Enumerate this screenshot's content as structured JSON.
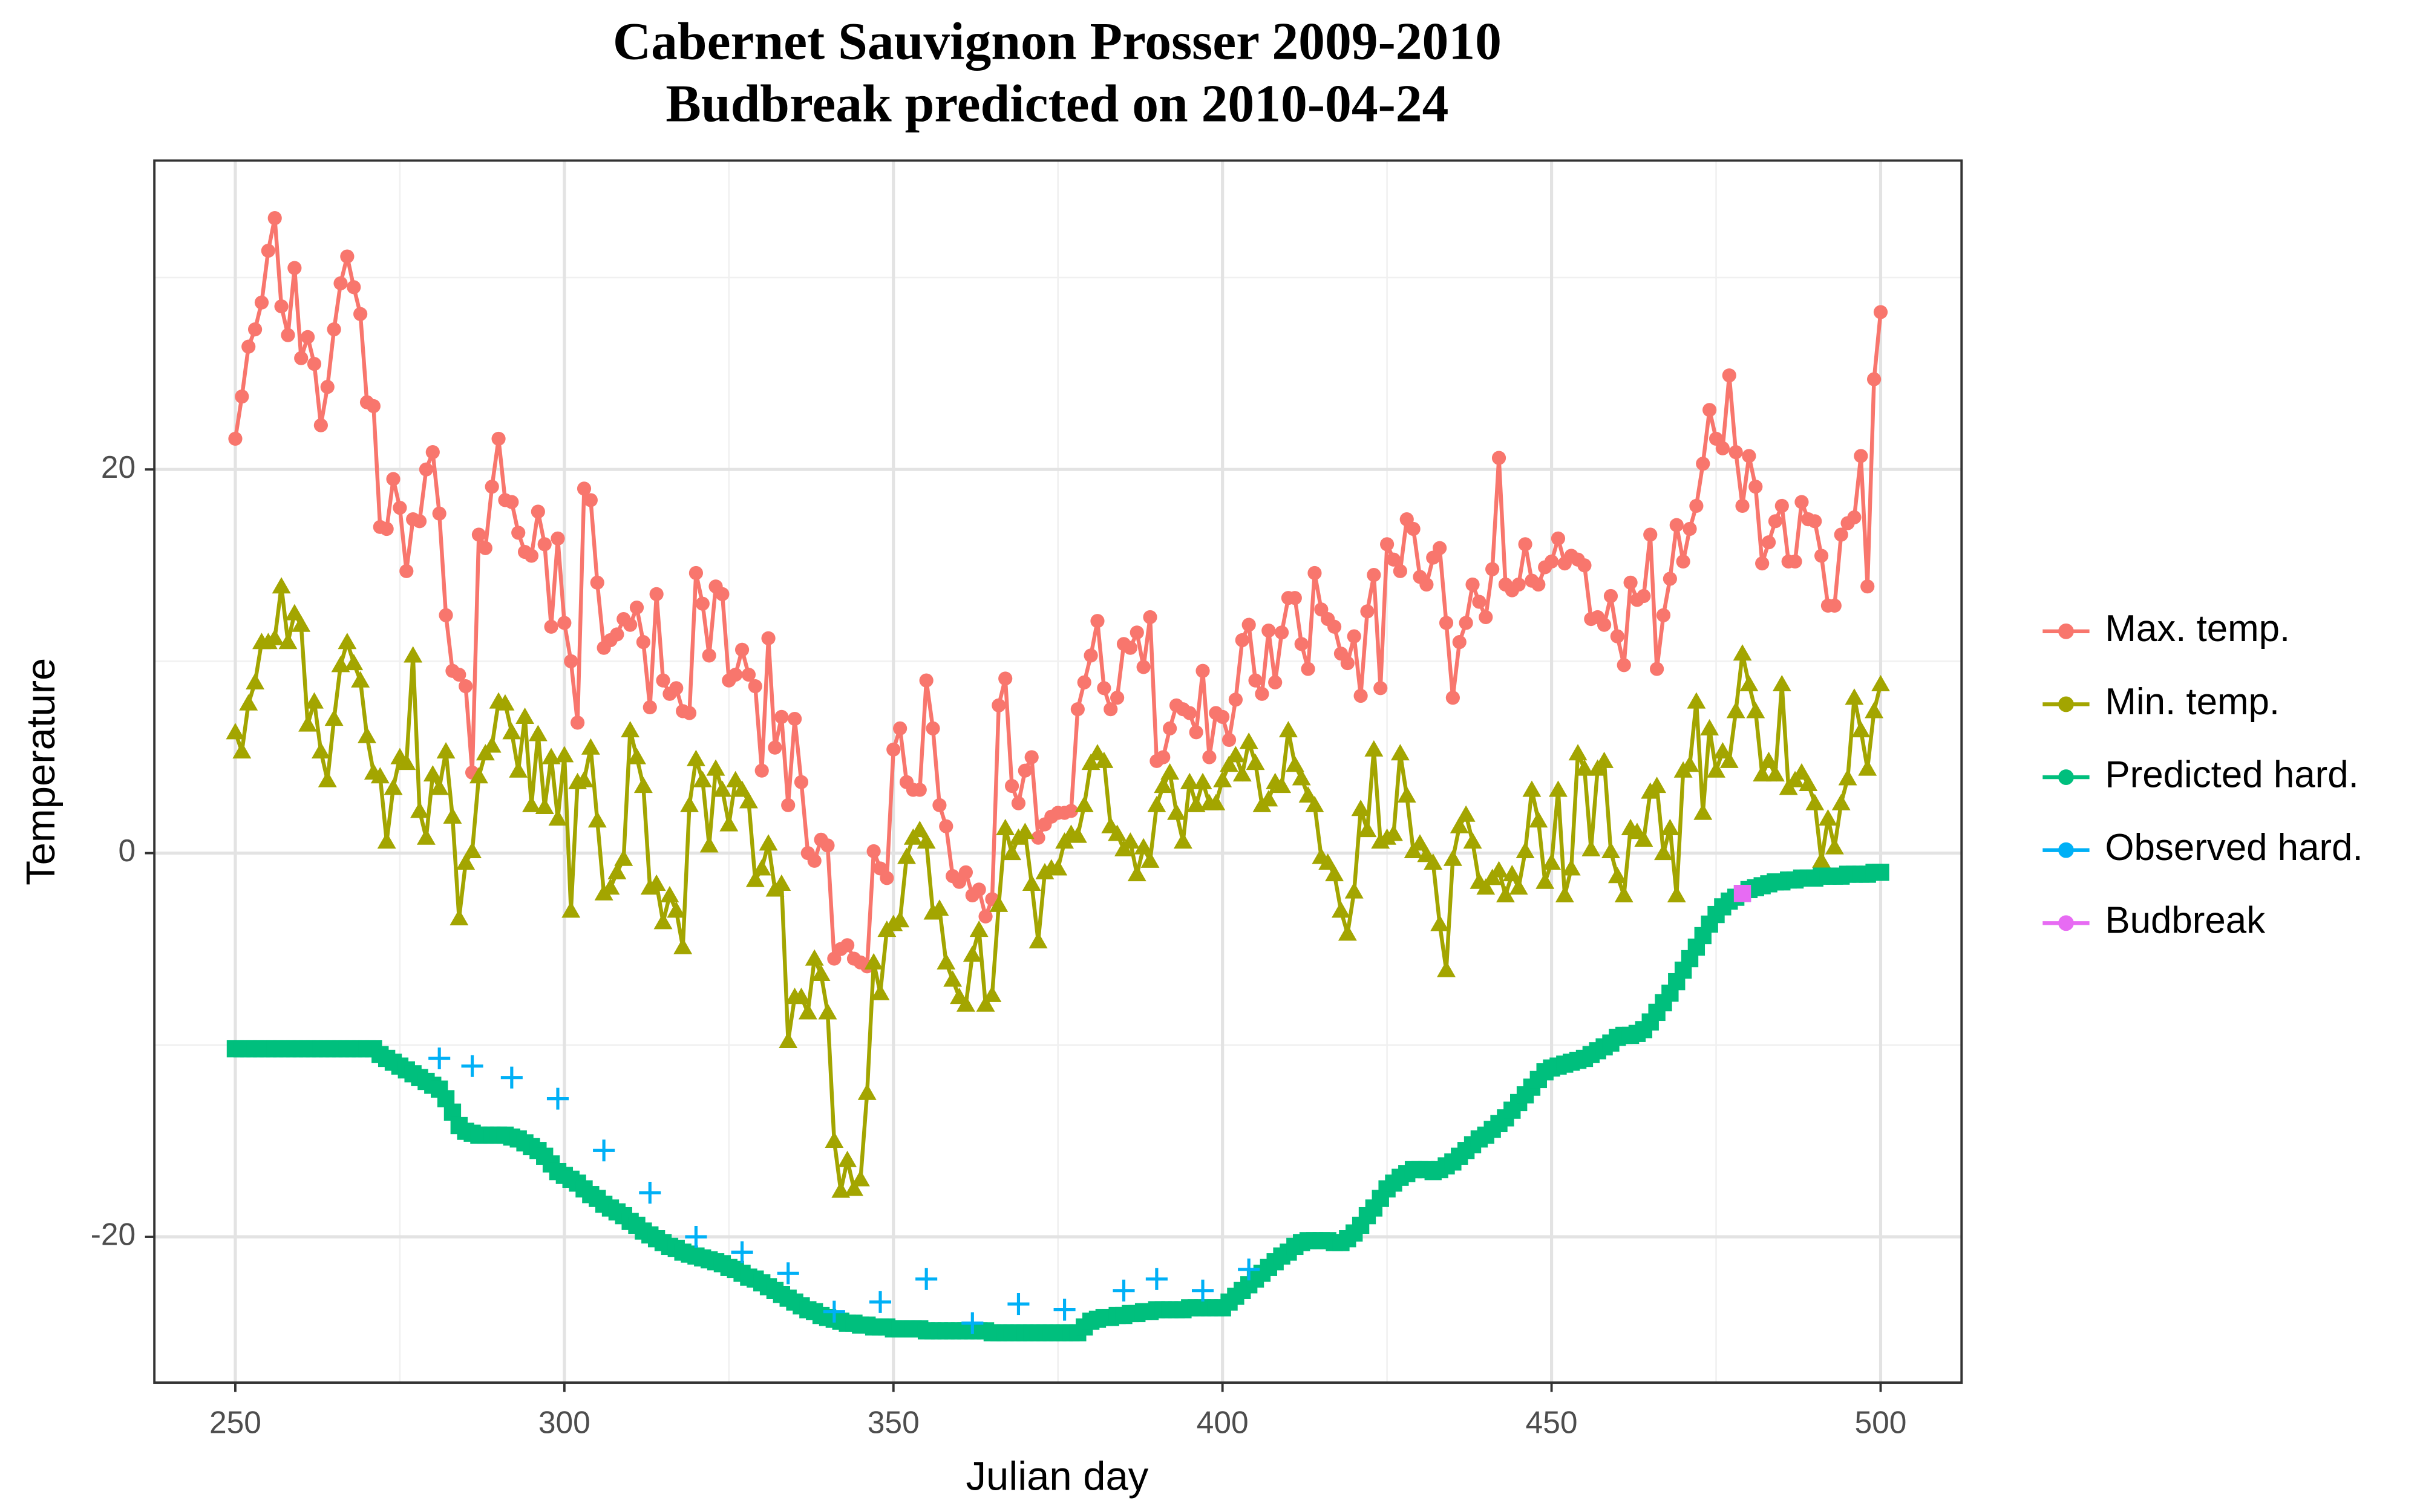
{
  "chart_data": {
    "type": "line",
    "title": "Cabernet Sauvignon Prosser 2009-2010",
    "subtitle": "Budbreak predicted on 2010-04-24",
    "x_label": "Julian day",
    "y_label": "Temperature",
    "xlim": [
      237.7,
      512.3
    ],
    "ylim": [
      -27.6,
      36.1
    ],
    "xticks": [
      250,
      300,
      350,
      400,
      450,
      500
    ],
    "yticks": [
      -20,
      0,
      20
    ],
    "xminor": [
      275,
      325,
      375,
      425,
      475
    ],
    "yminor": [
      -10,
      10,
      30
    ],
    "grid": true,
    "legend": "right",
    "x": [
      250,
      251,
      252,
      253,
      254,
      255,
      256,
      257,
      258,
      259,
      260,
      261,
      262,
      263,
      264,
      265,
      266,
      267,
      268,
      269,
      270,
      271,
      272,
      273,
      274,
      275,
      276,
      277,
      278,
      279,
      280,
      281,
      282,
      283,
      284,
      285,
      286,
      287,
      288,
      289,
      290,
      291,
      292,
      293,
      294,
      295,
      296,
      297,
      298,
      299,
      300,
      301,
      302,
      303,
      304,
      305,
      306,
      307,
      308,
      309,
      310,
      311,
      312,
      313,
      314,
      315,
      316,
      317,
      318,
      319,
      320,
      321,
      322,
      323,
      324,
      325,
      326,
      327,
      328,
      329,
      330,
      331,
      332,
      333,
      334,
      335,
      336,
      337,
      338,
      339,
      340,
      341,
      342,
      343,
      344,
      345,
      346,
      347,
      348,
      349,
      350,
      351,
      352,
      353,
      354,
      355,
      356,
      357,
      358,
      359,
      360,
      361,
      362,
      363,
      364,
      365,
      366,
      367,
      368,
      369,
      370,
      371,
      372,
      373,
      374,
      375,
      376,
      377,
      378,
      379,
      380,
      381,
      382,
      383,
      384,
      385,
      386,
      387,
      388,
      389,
      390,
      391,
      392,
      393,
      394,
      395,
      396,
      397,
      398,
      399,
      400,
      401,
      402,
      403,
      404,
      405,
      406,
      407,
      408,
      409,
      410,
      411,
      412,
      413,
      414,
      415,
      416,
      417,
      418,
      419,
      420,
      421,
      422,
      423,
      424,
      425,
      426,
      427,
      428,
      429,
      430,
      431,
      432,
      433,
      434,
      435,
      436,
      437,
      438,
      439,
      440,
      441,
      442,
      443,
      444,
      445,
      446,
      447,
      448,
      449,
      450,
      451,
      452,
      453,
      454,
      455,
      456,
      457,
      458,
      459,
      460,
      461,
      462,
      463,
      464,
      465,
      466,
      467,
      468,
      469,
      470,
      471,
      472,
      473,
      474,
      475,
      476,
      477,
      478,
      479,
      480,
      481,
      482,
      483,
      484,
      485,
      486,
      487,
      488,
      489,
      490,
      491,
      492,
      493,
      494,
      495,
      496,
      497,
      498,
      499,
      500
    ],
    "series": [
      {
        "name": "Max. temp.",
        "color": "#F8766D",
        "marker": "circle",
        "line": true,
        "values": [
          21.6,
          23.8,
          26.4,
          27.3,
          28.7,
          31.4,
          33.1,
          28.5,
          27,
          30.5,
          25.8,
          26.9,
          25.5,
          22.3,
          24.3,
          27.3,
          29.7,
          31.1,
          29.5,
          28.1,
          23.5,
          23.3,
          17,
          16.9,
          19.5,
          18,
          14.7,
          17.4,
          17.3,
          20,
          20.9,
          17.7,
          12.4,
          9.5,
          9.3,
          8.7,
          4.2,
          16.6,
          15.9,
          19.1,
          21.6,
          18.4,
          18.3,
          16.7,
          15.7,
          15.5,
          17.8,
          16.1,
          11.8,
          16.4,
          12,
          10,
          6.8,
          19,
          18.4,
          14.1,
          10.7,
          11.1,
          11.4,
          12.2,
          11.9,
          12.8,
          11,
          7.6,
          13.5,
          9,
          8.3,
          8.6,
          7.4,
          7.3,
          14.6,
          13,
          10.3,
          13.9,
          13.5,
          9,
          9.3,
          10.6,
          9.3,
          8.7,
          4.3,
          11.2,
          5.5,
          7.1,
          2.5,
          7,
          3.7,
          0,
          -0.4,
          0.7,
          0.4,
          -5.5,
          -5,
          -4.8,
          -5.5,
          -5.7,
          -5.9,
          0.1,
          -0.8,
          -1.3,
          5.4,
          6.5,
          3.7,
          3.3,
          3.3,
          9,
          6.5,
          2.5,
          1.4,
          -1.2,
          -1.5,
          -1,
          -2.2,
          -1.9,
          -3.3,
          -2.4,
          7.7,
          9.1,
          3.5,
          2.6,
          4.3,
          5,
          0.8,
          1.5,
          1.9,
          2.1,
          2.1,
          2.2,
          7.5,
          8.9,
          10.3,
          12.1,
          8.6,
          7.5,
          8.1,
          10.9,
          10.7,
          11.5,
          9.7,
          12.3,
          4.8,
          5,
          6.5,
          7.7,
          7.5,
          7.3,
          6.3,
          9.5,
          5,
          7.3,
          7.1,
          5.9,
          8,
          11.1,
          11.9,
          9,
          8.3,
          11.6,
          8.9,
          11.5,
          13.3,
          13.3,
          10.9,
          9.6,
          14.6,
          12.7,
          12.2,
          11.8,
          10.4,
          9.9,
          11.3,
          8.2,
          12.6,
          14.5,
          8.6,
          16.1,
          15.3,
          14.7,
          17.4,
          16.9,
          14.4,
          14,
          15.4,
          15.9,
          12,
          8.1,
          11,
          12,
          14,
          13.1,
          12.3,
          14.8,
          20.6,
          14,
          13.7,
          14,
          16.1,
          14.2,
          14,
          14.9,
          15.2,
          16.4,
          15.1,
          15.5,
          15.3,
          15,
          12.2,
          12.3,
          11.9,
          13.4,
          11.3,
          9.8,
          14.1,
          13.2,
          13.4,
          16.6,
          9.6,
          12.4,
          14.3,
          17.1,
          15.2,
          16.9,
          18.1,
          20.3,
          23.1,
          21.6,
          21.1,
          24.9,
          20.9,
          18.1,
          20.7,
          19.1,
          15.1,
          16.2,
          17.3,
          18.1,
          15.2,
          15.2,
          18.3,
          17.4,
          17.3,
          15.5,
          12.9,
          12.9,
          16.6,
          17.2,
          17.5,
          20.7,
          13.9,
          24.7,
          28.2
        ]
      },
      {
        "name": "Min. temp.",
        "color": "#A3A500",
        "marker": "triangle",
        "line": true,
        "values": [
          6.3,
          5.3,
          7.8,
          8.9,
          11,
          11,
          11.2,
          13.9,
          11,
          12.5,
          11.9,
          6.7,
          7.9,
          5.3,
          3.8,
          7,
          9.8,
          11,
          9.9,
          9,
          6.1,
          4.2,
          4,
          0.6,
          3.4,
          5,
          4.7,
          10.3,
          2.2,
          0.8,
          4.1,
          3.4,
          5.3,
          1.9,
          -3.4,
          -0.5,
          0.1,
          4,
          5.2,
          5.6,
          7.9,
          7.8,
          6.3,
          4.3,
          7.1,
          2.5,
          6.2,
          2.4,
          5,
          1.8,
          5.1,
          -3,
          3.7,
          3.8,
          5.5,
          1.7,
          -2.1,
          -1.8,
          -1,
          -0.3,
          6.4,
          5,
          3.5,
          -1.8,
          -1.6,
          -3.6,
          -2.2,
          -3,
          -4.9,
          2.5,
          4.9,
          3.8,
          0.4,
          4.4,
          3.3,
          1.5,
          3.8,
          3.3,
          2.7,
          -1.4,
          -0.8,
          0.5,
          -1.9,
          -1.6,
          -9.8,
          -7.5,
          -7.5,
          -8.3,
          -5.5,
          -6.3,
          -8.3,
          -15,
          -17.6,
          -16,
          -17.5,
          -17,
          -12.5,
          -5.7,
          -7.3,
          -4,
          -3.7,
          -3.5,
          -0.2,
          0.8,
          1.2,
          0.6,
          -3.1,
          -2.9,
          -5.7,
          -6.6,
          -7.5,
          -7.9,
          -5.3,
          -4,
          -7.9,
          -7.4,
          -2.7,
          1.3,
          0,
          0.8,
          1.1,
          -1.6,
          -4.6,
          -1,
          -0.8,
          -0.8,
          0.6,
          1,
          0.9,
          2.5,
          4.7,
          5.2,
          4.8,
          1.4,
          1,
          0.2,
          0.6,
          -1.1,
          0.3,
          -0.4,
          2.5,
          3.5,
          4.2,
          2.1,
          0.6,
          3.7,
          2.5,
          3.7,
          2.6,
          2.6,
          3.8,
          4.6,
          5.1,
          4.1,
          5.8,
          4.7,
          2.5,
          2.8,
          3.7,
          3.5,
          6.4,
          4.6,
          3.9,
          3,
          2.5,
          -0.2,
          -0.5,
          -1.1,
          -3,
          -4.2,
          -2,
          2.3,
          1.2,
          5.4,
          0.6,
          0.8,
          1,
          5.2,
          3,
          0.1,
          0.5,
          -0.1,
          -0.5,
          -3.7,
          -6.1,
          -0.3,
          1.4,
          2,
          0.6,
          -1.5,
          -1.8,
          -1.3,
          -0.9,
          -2.2,
          -1.1,
          -1.8,
          0.1,
          3.3,
          1.7,
          -1.5,
          -0.5,
          3.3,
          -2.2,
          -0.8,
          5.2,
          4.4,
          0.2,
          4.4,
          4.8,
          0.1,
          -1.2,
          -2.2,
          1.3,
          1.1,
          0.7,
          3.2,
          3.5,
          0,
          1.3,
          -2.2,
          4.3,
          4.6,
          7.9,
          2.1,
          6.5,
          4.3,
          5.3,
          4.8,
          7.4,
          10.4,
          8.8,
          7.4,
          4.1,
          4.8,
          4.1,
          8.8,
          3.4,
          3.8,
          4.2,
          3.6,
          2.6,
          -0.4,
          1.8,
          0.3,
          2.6,
          3.9,
          8.1,
          6.4,
          4.4,
          7.4,
          8.8
        ]
      },
      {
        "name": "Predicted hard.",
        "color": "#00BF7D",
        "marker": "square",
        "line": true,
        "values": [
          -10.2,
          -10.2,
          -10.2,
          -10.2,
          -10.2,
          -10.2,
          -10.2,
          -10.2,
          -10.2,
          -10.2,
          -10.2,
          -10.2,
          -10.2,
          -10.2,
          -10.2,
          -10.2,
          -10.2,
          -10.2,
          -10.2,
          -10.2,
          -10.2,
          -10.2,
          -10.5,
          -10.7,
          -10.9,
          -11.1,
          -11.3,
          -11.5,
          -11.7,
          -11.9,
          -12.1,
          -12.3,
          -12.8,
          -13.5,
          -14.2,
          -14.5,
          -14.6,
          -14.7,
          -14.7,
          -14.7,
          -14.7,
          -14.7,
          -14.8,
          -14.9,
          -15.1,
          -15.3,
          -15.5,
          -15.8,
          -16.2,
          -16.6,
          -16.8,
          -17,
          -17.2,
          -17.5,
          -17.8,
          -18,
          -18.3,
          -18.5,
          -18.7,
          -18.9,
          -19.2,
          -19.4,
          -19.7,
          -19.9,
          -20.1,
          -20.3,
          -20.5,
          -20.6,
          -20.8,
          -20.9,
          -21,
          -21.1,
          -21.2,
          -21.3,
          -21.4,
          -21.6,
          -21.7,
          -21.9,
          -22.1,
          -22.2,
          -22.4,
          -22.6,
          -22.8,
          -23,
          -23.2,
          -23.4,
          -23.6,
          -23.8,
          -23.9,
          -24.1,
          -24.2,
          -24.3,
          -24.4,
          -24.5,
          -24.5,
          -24.6,
          -24.6,
          -24.7,
          -24.7,
          -24.7,
          -24.8,
          -24.8,
          -24.8,
          -24.8,
          -24.8,
          -24.9,
          -24.9,
          -24.9,
          -24.9,
          -24.9,
          -24.9,
          -24.9,
          -24.9,
          -24.9,
          -24.9,
          -25,
          -25,
          -25,
          -25,
          -25,
          -25,
          -25,
          -25,
          -25,
          -25,
          -25,
          -25,
          -25,
          -25,
          -24.7,
          -24.4,
          -24.3,
          -24.2,
          -24.2,
          -24.1,
          -24.1,
          -24,
          -24,
          -23.9,
          -23.9,
          -23.8,
          -23.8,
          -23.8,
          -23.8,
          -23.8,
          -23.7,
          -23.7,
          -23.7,
          -23.7,
          -23.7,
          -23.7,
          -23.4,
          -23.1,
          -22.8,
          -22.5,
          -22.2,
          -21.9,
          -21.6,
          -21.3,
          -21,
          -20.8,
          -20.5,
          -20.3,
          -20.2,
          -20.2,
          -20.2,
          -20.2,
          -20.3,
          -20.3,
          -20.1,
          -19.8,
          -19.4,
          -18.9,
          -18.5,
          -18,
          -17.5,
          -17.2,
          -16.9,
          -16.7,
          -16.5,
          -16.5,
          -16.5,
          -16.6,
          -16.5,
          -16.3,
          -16.1,
          -15.8,
          -15.5,
          -15.2,
          -14.9,
          -14.7,
          -14.4,
          -14.1,
          -13.8,
          -13.4,
          -13,
          -12.6,
          -12.2,
          -11.8,
          -11.4,
          -11.2,
          -11.1,
          -11,
          -10.9,
          -10.8,
          -10.7,
          -10.5,
          -10.3,
          -10.1,
          -9.9,
          -9.6,
          -9.5,
          -9.5,
          -9.4,
          -9.2,
          -8.8,
          -8.3,
          -7.8,
          -7.3,
          -6.7,
          -6.1,
          -5.5,
          -4.9,
          -4.3,
          -3.7,
          -3.2,
          -2.8,
          -2.5,
          -2.3,
          -2.1,
          -1.9,
          -1.8,
          -1.7,
          -1.6,
          -1.5,
          -1.5,
          -1.4,
          -1.4,
          -1.3,
          -1.3,
          -1.3,
          -1.2,
          -1.2,
          -1.2,
          -1.2,
          -1.1,
          -1.1,
          -1.1,
          -1.1,
          -1,
          -1
        ]
      },
      {
        "name": "Observed hard.",
        "color": "#00B0F6",
        "marker": "plus",
        "line": false,
        "x": [
          281,
          286,
          292,
          299,
          306,
          313,
          320,
          327,
          334,
          341,
          348,
          355,
          362,
          369,
          376,
          385,
          390,
          397,
          404
        ],
        "values": [
          -10.7,
          -11.1,
          -11.7,
          -12.8,
          -15.5,
          -17.7,
          -20,
          -20.8,
          -21.9,
          -23.9,
          -23.4,
          -22.2,
          -24.5,
          -23.5,
          -23.8,
          -22.8,
          -22.2,
          -22.8,
          -21.7
        ]
      },
      {
        "name": "Budbreak",
        "color": "#E76BF3",
        "marker": "square",
        "line": true,
        "x": [
          479
        ],
        "values": [
          -2.1
        ]
      }
    ]
  }
}
